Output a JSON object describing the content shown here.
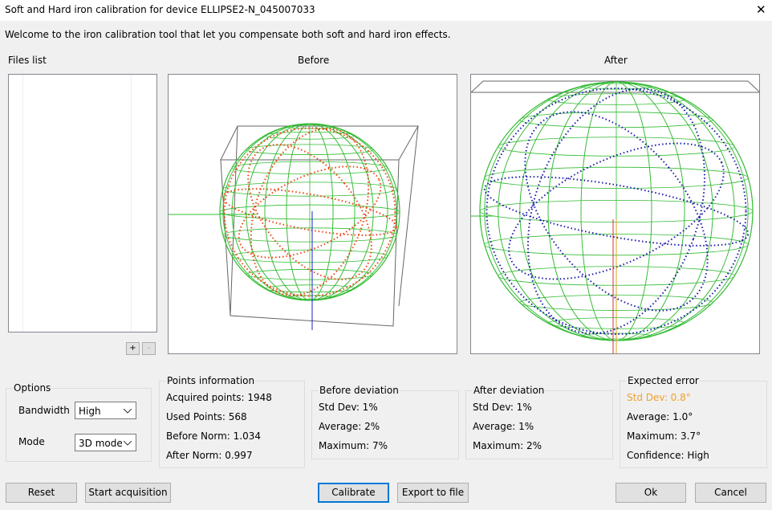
{
  "window": {
    "title": "Soft and Hard iron calibration for device ELLIPSE2-N_045007033",
    "close": "✕"
  },
  "welcome": "Welcome to the iron calibration tool that let you compensate both soft and hard iron effects.",
  "files_list": {
    "label": "Files list",
    "add": "+",
    "remove": "-"
  },
  "views": {
    "before": "Before",
    "after": "After"
  },
  "options": {
    "label": "Options",
    "bandwidth_label": "Bandwidth",
    "bandwidth": "High",
    "mode_label": "Mode",
    "mode": "3D mode"
  },
  "points_information": {
    "label": "Points information",
    "lines": [
      "Acquired points: 1948",
      "Used Points: 568",
      "Before Norm: 1.034",
      "After Norm: 0.997"
    ]
  },
  "before_deviation": {
    "label": "Before deviation",
    "lines": [
      "Std Dev: 1%",
      "Average: 2%",
      "Maximum: 7%"
    ]
  },
  "after_deviation": {
    "label": "After deviation",
    "lines": [
      "Std Dev: 1%",
      "Average: 1%",
      "Maximum: 2%"
    ]
  },
  "expected_error": {
    "label": "Expected error",
    "lines": [
      "Std Dev: 0.8°",
      "Average: 1.0°",
      "Maximum: 3.7°",
      "Confidence: High"
    ]
  },
  "buttons": {
    "reset": "Reset",
    "start": "Start acquisition",
    "calibrate": "Calibrate",
    "export": "Export to file",
    "ok": "Ok",
    "cancel": "Cancel"
  }
}
